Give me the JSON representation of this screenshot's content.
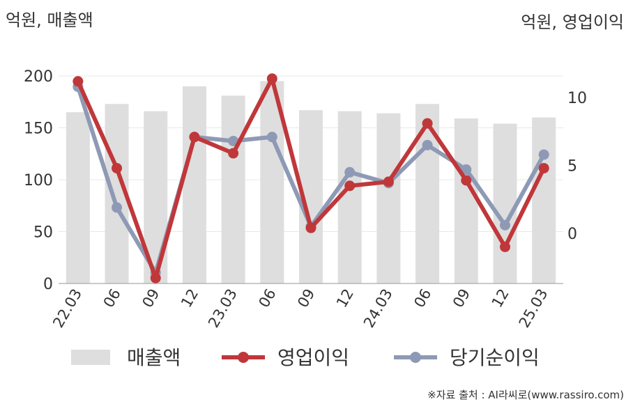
{
  "chart_data": {
    "type": "bar+line",
    "left_axis_label": "억원, 매출액",
    "right_axis_label": "억원, 영업이익",
    "categories": [
      "22.03",
      "06",
      "09",
      "12",
      "23.03",
      "06",
      "09",
      "12",
      "24.03",
      "06",
      "09",
      "12",
      "25.03"
    ],
    "left_ylim": [
      0,
      200
    ],
    "left_yticks": [
      0,
      50,
      100,
      150,
      200
    ],
    "right_ylim": [
      -3.7,
      11.6
    ],
    "right_yticks": [
      0,
      5,
      10
    ],
    "series": [
      {
        "name": "매출액",
        "type": "bar",
        "axis": "left",
        "color": "#dedede",
        "values": [
          165,
          173,
          166,
          190,
          181,
          195,
          167,
          166,
          164,
          173,
          159,
          154,
          160
        ]
      },
      {
        "name": "영업이익",
        "type": "line",
        "axis": "right",
        "color": "#c0373a",
        "values": [
          11.2,
          4.8,
          -3.3,
          7.1,
          5.9,
          11.4,
          0.4,
          3.5,
          3.8,
          8.1,
          3.9,
          -1.0,
          4.8
        ]
      },
      {
        "name": "당기순이익",
        "type": "line",
        "axis": "right",
        "color": "#8e9ab5",
        "values": [
          10.8,
          1.9,
          -2.9,
          7.1,
          6.8,
          7.1,
          0.5,
          4.5,
          3.7,
          6.5,
          4.7,
          0.6,
          5.8
        ]
      }
    ],
    "grid": true,
    "legend_position": "bottom"
  },
  "source": "※자료 출처 : AI라씨로(www.rassiro.com)"
}
